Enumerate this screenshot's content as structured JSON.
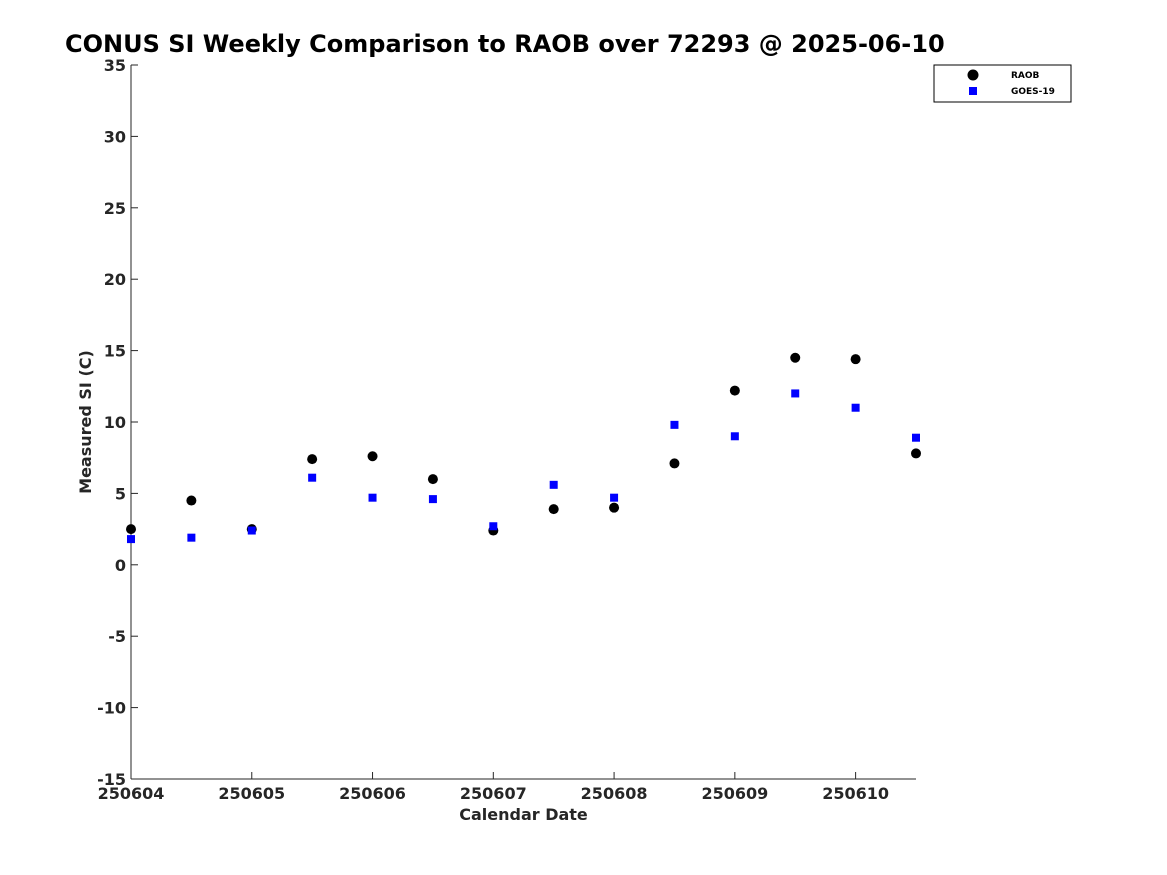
{
  "chart_data": {
    "type": "scatter",
    "title": "CONUS SI Weekly Comparison to RAOB over 72293 @ 2025-06-10",
    "xlabel": "Calendar Date",
    "ylabel": "Measured SI (C)",
    "xlim": [
      250604,
      250610.5
    ],
    "ylim": [
      -15,
      35
    ],
    "xticks": [
      250604,
      250605,
      250606,
      250607,
      250608,
      250609,
      250610
    ],
    "xtick_labels": [
      "250604",
      "250605",
      "250606",
      "250607",
      "250608",
      "250609",
      "250610"
    ],
    "yticks": [
      35,
      30,
      25,
      20,
      15,
      10,
      5,
      0,
      -5,
      -10,
      -15
    ],
    "ytick_labels": [
      "35",
      "30",
      "25",
      "20",
      "15",
      "10",
      "5",
      "0",
      "-5",
      "-10",
      "-15"
    ],
    "grid": false,
    "legend_position": "top-right",
    "series": [
      {
        "name": "RAOB",
        "marker": "circle",
        "color": "#000000",
        "x": [
          250604,
          250604.5,
          250605,
          250605.5,
          250606,
          250606.5,
          250607,
          250607.5,
          250608,
          250608.5,
          250609,
          250609.5,
          250610,
          250610.5
        ],
        "y": [
          2.5,
          4.5,
          2.5,
          7.4,
          7.6,
          6.0,
          2.4,
          3.9,
          4.0,
          7.1,
          12.2,
          14.5,
          14.4,
          7.8
        ]
      },
      {
        "name": "GOES-19",
        "marker": "square",
        "color": "#0000ff",
        "x": [
          250604,
          250604.5,
          250605,
          250605.5,
          250606,
          250606.5,
          250607,
          250607.5,
          250608,
          250608.5,
          250609,
          250609.5,
          250610,
          250610.5
        ],
        "y": [
          1.8,
          1.9,
          2.4,
          6.1,
          4.7,
          4.6,
          2.7,
          5.6,
          4.7,
          9.8,
          9.0,
          12.0,
          11.0,
          8.9
        ]
      }
    ]
  }
}
